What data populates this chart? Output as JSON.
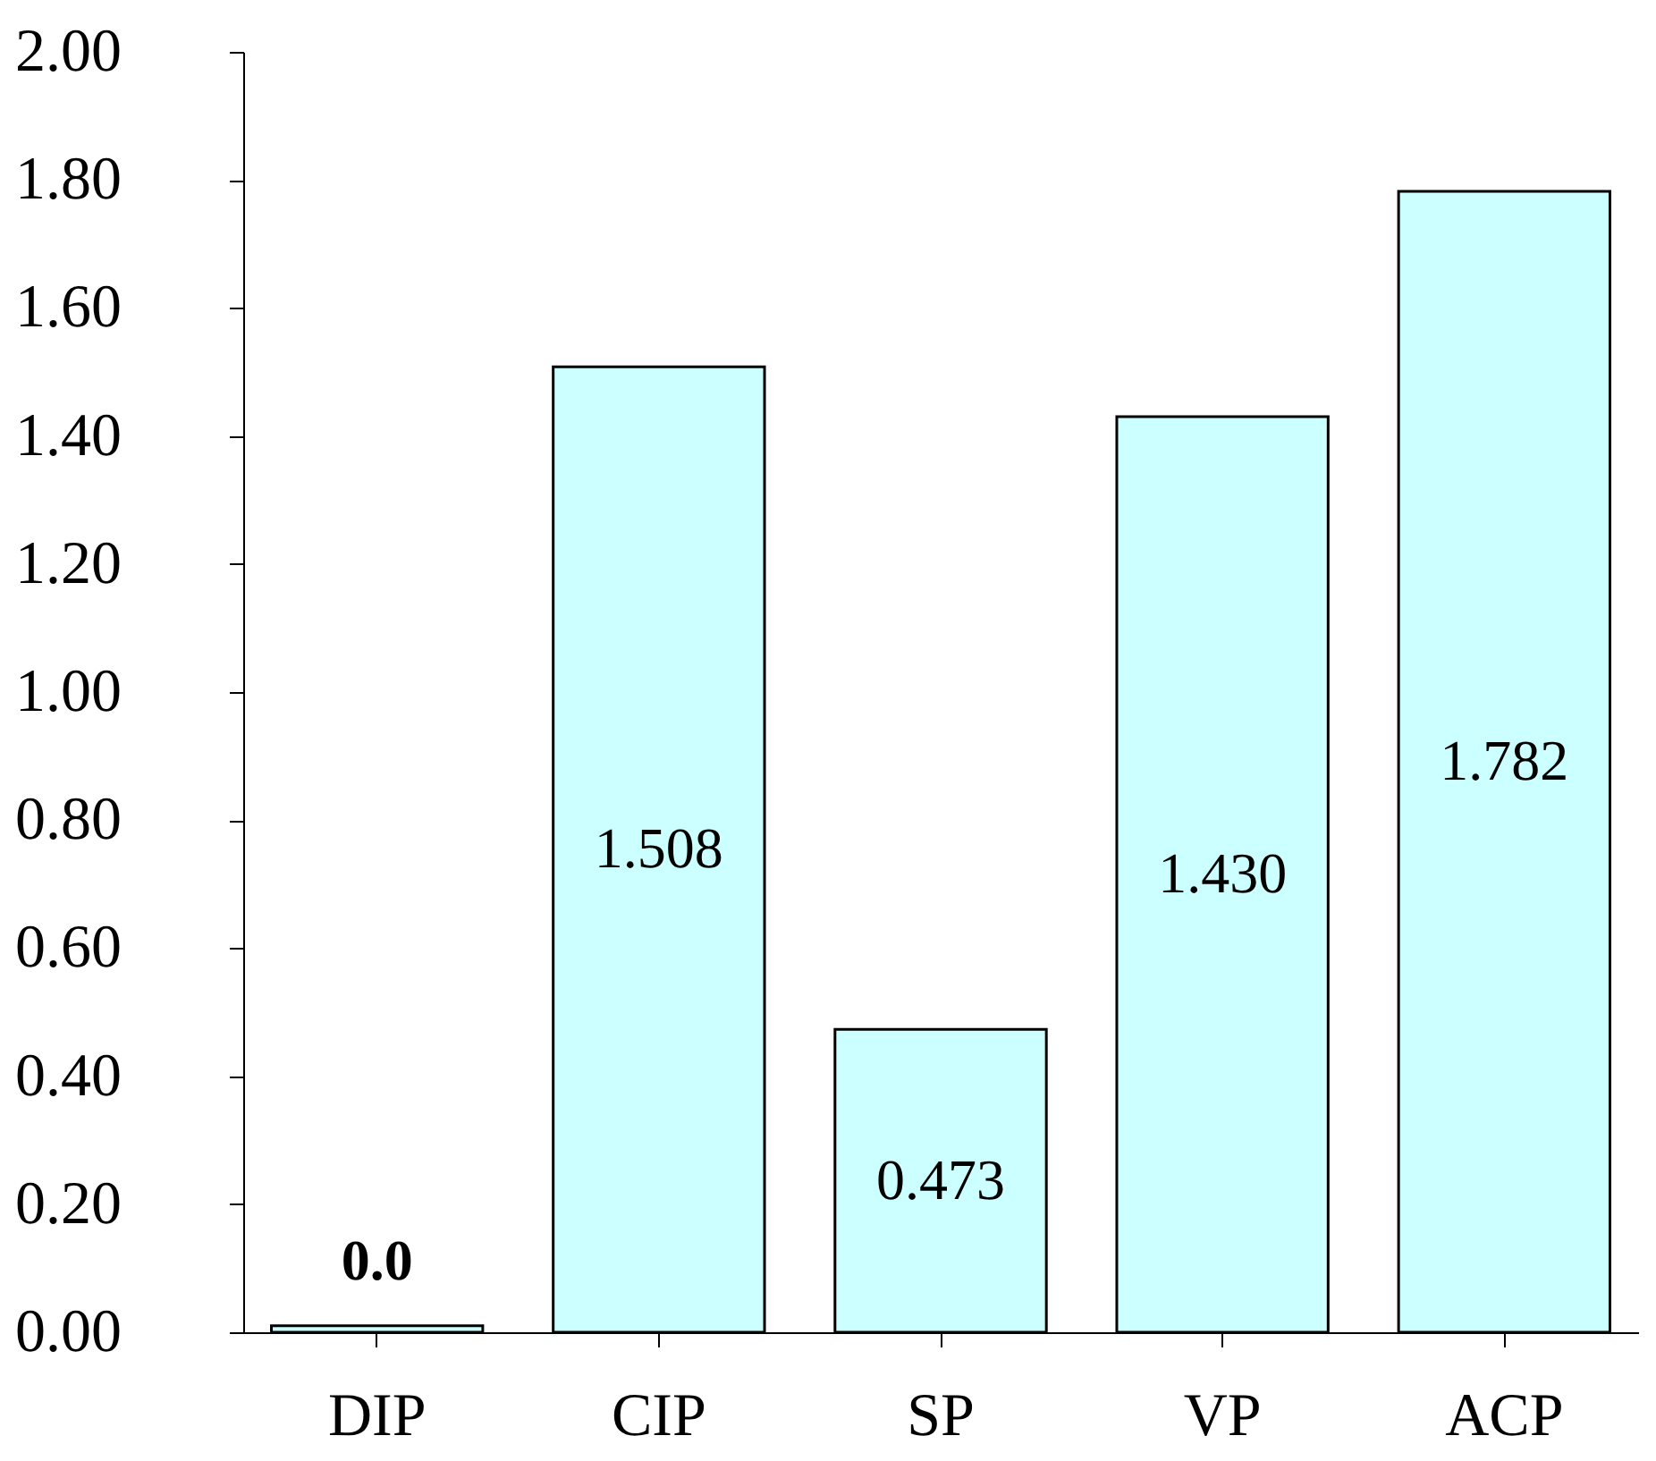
{
  "chart_data": {
    "type": "bar",
    "categories": [
      "DIP",
      "CIP",
      "SP",
      "VP",
      "ACP"
    ],
    "values": [
      0.01,
      1.508,
      0.473,
      1.43,
      1.782
    ],
    "value_labels": [
      "0.0",
      "1.508",
      "0.473",
      "1.430",
      "1.782"
    ],
    "color": "#ccffff",
    "ylim": [
      0,
      2
    ],
    "yticks": [
      {
        "value": 0,
        "label": "0.00"
      },
      {
        "value": 0.2,
        "label": "0.20"
      },
      {
        "value": 0.4,
        "label": "0.40"
      },
      {
        "value": 0.6,
        "label": "0.60"
      },
      {
        "value": 0.8,
        "label": "0.80"
      },
      {
        "value": 1,
        "label": "1.00"
      },
      {
        "value": 1.2,
        "label": "1.20"
      },
      {
        "value": 1.4,
        "label": "1.40"
      },
      {
        "value": 1.6,
        "label": "1.60"
      },
      {
        "value": 1.8,
        "label": "1.80"
      },
      {
        "value": 2,
        "label": "2.00"
      }
    ],
    "grid": false
  }
}
